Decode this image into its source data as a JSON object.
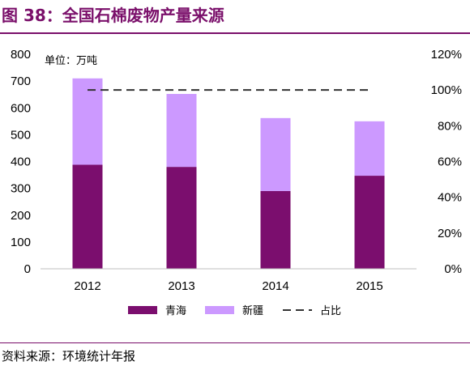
{
  "figure": {
    "title": "图 38：全国石棉废物产量来源",
    "source": "资料来源：环境统计年报"
  },
  "chart_data": {
    "type": "bar",
    "stacked": true,
    "unit_label": "单位：万吨",
    "categories": [
      "2012",
      "2013",
      "2014",
      "2015"
    ],
    "series": [
      {
        "name": "青海",
        "values": [
          388,
          380,
          290,
          347
        ],
        "color": "#7b0e6e"
      },
      {
        "name": "新疆",
        "values": [
          322,
          272,
          272,
          203
        ],
        "color": "#cc99ff"
      }
    ],
    "line_series": {
      "name": "占比",
      "values": [
        100,
        100,
        100,
        100
      ],
      "axis": "right",
      "style": "dashed",
      "color": "#333333"
    },
    "y_left": {
      "min": 0,
      "max": 800,
      "ticks": [
        "0",
        "100",
        "200",
        "300",
        "400",
        "500",
        "600",
        "700",
        "800"
      ]
    },
    "y_right": {
      "min": 0,
      "max": 120,
      "ticks": [
        "0%",
        "20%",
        "40%",
        "60%",
        "80%",
        "100%",
        "120%"
      ]
    },
    "legend_position": "bottom"
  }
}
